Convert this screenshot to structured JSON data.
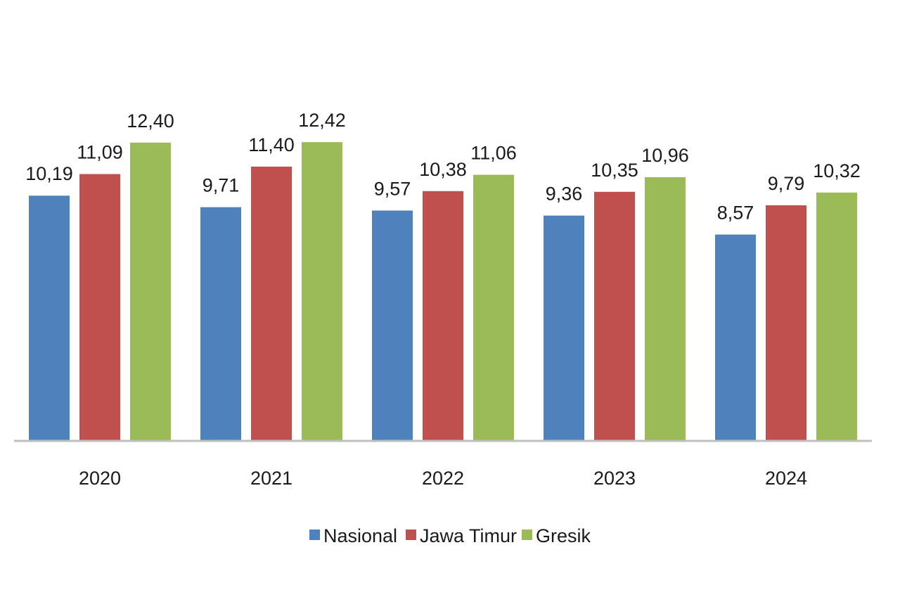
{
  "chart_data": {
    "type": "bar",
    "categories": [
      "2020",
      "2021",
      "2022",
      "2023",
      "2024"
    ],
    "series": [
      {
        "name": "Nasional",
        "color": "#4F81BD",
        "values": [
          10.19,
          9.71,
          9.57,
          9.36,
          8.57
        ],
        "labels": [
          "10,19",
          "9,71",
          "9,57",
          "9,36",
          "8,57"
        ]
      },
      {
        "name": "Jawa Timur",
        "color": "#C0504D",
        "values": [
          11.09,
          11.4,
          10.38,
          10.35,
          9.79
        ],
        "labels": [
          "11,09",
          "11,40",
          "10,38",
          "10,35",
          "9,79"
        ]
      },
      {
        "name": "Gresik",
        "color": "#9BBB59",
        "values": [
          12.4,
          12.42,
          11.06,
          10.96,
          10.32
        ],
        "labels": [
          "12,40",
          "12,42",
          "11,06",
          "10,96",
          "10,32"
        ]
      }
    ],
    "ylim": [
      0,
      12.6
    ],
    "grid": false,
    "legend": "bottom-center",
    "axis_color": "#BFBFBF"
  }
}
